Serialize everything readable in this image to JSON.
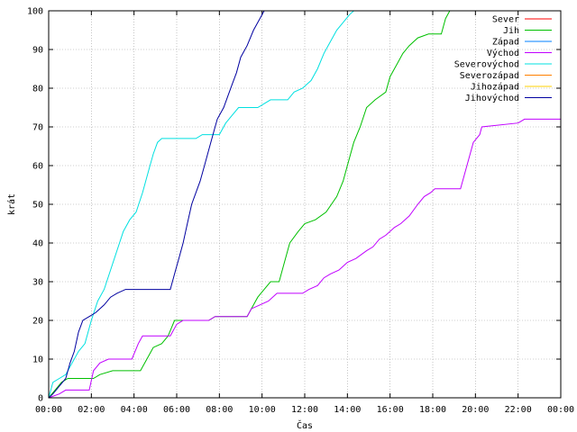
{
  "chart_data": {
    "type": "line",
    "xlabel": "Čas",
    "ylabel": "krát",
    "x_unit": "hours",
    "xlim": [
      0,
      24
    ],
    "ylim": [
      0,
      100
    ],
    "x_ticks": [
      0,
      2,
      4,
      6,
      8,
      10,
      12,
      14,
      16,
      18,
      20,
      22,
      24
    ],
    "x_tick_labels": [
      "00:00",
      "02:00",
      "04:00",
      "06:00",
      "08:00",
      "10:00",
      "12:00",
      "14:00",
      "16:00",
      "18:00",
      "20:00",
      "22:00",
      "00:00"
    ],
    "y_ticks": [
      0,
      10,
      20,
      30,
      40,
      50,
      60,
      70,
      80,
      90,
      100
    ],
    "y_tick_labels": [
      "0",
      "10",
      "20",
      "30",
      "40",
      "50",
      "60",
      "70",
      "80",
      "90",
      "100"
    ],
    "legend_position": "top-right",
    "series": [
      {
        "name": "Sever",
        "color": "#ff0000",
        "points": []
      },
      {
        "name": "Jih",
        "color": "#00c000",
        "points": [
          [
            0,
            0
          ],
          [
            0.3,
            2
          ],
          [
            0.6,
            4
          ],
          [
            0.9,
            5
          ],
          [
            2.1,
            5
          ],
          [
            2.4,
            6
          ],
          [
            3.0,
            7
          ],
          [
            4.3,
            7
          ],
          [
            4.6,
            10
          ],
          [
            4.9,
            13
          ],
          [
            5.3,
            14
          ],
          [
            5.6,
            16
          ],
          [
            5.9,
            20
          ],
          [
            7.5,
            20
          ],
          [
            7.8,
            21
          ],
          [
            9.3,
            21
          ],
          [
            9.5,
            23
          ],
          [
            9.8,
            26
          ],
          [
            10.1,
            28
          ],
          [
            10.4,
            30
          ],
          [
            10.8,
            30
          ],
          [
            11.0,
            34
          ],
          [
            11.3,
            40
          ],
          [
            11.7,
            43
          ],
          [
            12.0,
            45
          ],
          [
            12.5,
            46
          ],
          [
            13.0,
            48
          ],
          [
            13.5,
            52
          ],
          [
            13.8,
            56
          ],
          [
            14.0,
            60
          ],
          [
            14.3,
            66
          ],
          [
            14.6,
            70
          ],
          [
            14.9,
            75
          ],
          [
            15.3,
            77
          ],
          [
            15.8,
            79
          ],
          [
            16.0,
            83
          ],
          [
            16.3,
            86
          ],
          [
            16.6,
            89
          ],
          [
            16.9,
            91
          ],
          [
            17.3,
            93
          ],
          [
            17.8,
            94
          ],
          [
            18.4,
            94
          ],
          [
            18.6,
            98
          ],
          [
            18.8,
            100
          ]
        ]
      },
      {
        "name": "Západ",
        "color": "#0080ff",
        "points": []
      },
      {
        "name": "Východ",
        "color": "#c000ff",
        "points": [
          [
            0,
            0
          ],
          [
            0.5,
            1
          ],
          [
            0.8,
            2
          ],
          [
            1.9,
            2
          ],
          [
            2.1,
            7
          ],
          [
            2.4,
            9
          ],
          [
            2.8,
            10
          ],
          [
            3.9,
            10
          ],
          [
            4.2,
            14
          ],
          [
            4.4,
            16
          ],
          [
            5.7,
            16
          ],
          [
            6.0,
            19
          ],
          [
            6.3,
            20
          ],
          [
            7.5,
            20
          ],
          [
            7.8,
            21
          ],
          [
            9.3,
            21
          ],
          [
            9.5,
            23
          ],
          [
            9.9,
            24
          ],
          [
            10.3,
            25
          ],
          [
            10.7,
            27
          ],
          [
            11.9,
            27
          ],
          [
            12.2,
            28
          ],
          [
            12.6,
            29
          ],
          [
            12.9,
            31
          ],
          [
            13.2,
            32
          ],
          [
            13.6,
            33
          ],
          [
            14.0,
            35
          ],
          [
            14.4,
            36
          ],
          [
            14.9,
            38
          ],
          [
            15.2,
            39
          ],
          [
            15.5,
            41
          ],
          [
            15.8,
            42
          ],
          [
            16.2,
            44
          ],
          [
            16.5,
            45
          ],
          [
            16.9,
            47
          ],
          [
            17.3,
            50
          ],
          [
            17.6,
            52
          ],
          [
            17.9,
            53
          ],
          [
            18.1,
            54
          ],
          [
            19.3,
            54
          ],
          [
            19.6,
            60
          ],
          [
            19.9,
            66
          ],
          [
            20.2,
            68
          ],
          [
            20.3,
            70
          ],
          [
            22.0,
            71
          ],
          [
            22.3,
            72
          ],
          [
            24.0,
            72
          ]
        ]
      },
      {
        "name": "Severovýchod",
        "color": "#00e0e0",
        "points": [
          [
            0,
            0
          ],
          [
            0.2,
            4
          ],
          [
            0.5,
            5
          ],
          [
            0.8,
            6
          ],
          [
            1.1,
            9
          ],
          [
            1.4,
            12
          ],
          [
            1.7,
            14
          ],
          [
            2.0,
            20
          ],
          [
            2.3,
            25
          ],
          [
            2.6,
            28
          ],
          [
            2.9,
            33
          ],
          [
            3.2,
            38
          ],
          [
            3.5,
            43
          ],
          [
            3.8,
            46
          ],
          [
            4.1,
            48
          ],
          [
            4.4,
            53
          ],
          [
            4.7,
            59
          ],
          [
            4.9,
            63
          ],
          [
            5.1,
            66
          ],
          [
            5.3,
            67
          ],
          [
            6.9,
            67
          ],
          [
            7.2,
            68
          ],
          [
            8.0,
            68
          ],
          [
            8.3,
            71
          ],
          [
            8.6,
            73
          ],
          [
            8.9,
            75
          ],
          [
            9.8,
            75
          ],
          [
            10.1,
            76
          ],
          [
            10.4,
            77
          ],
          [
            11.2,
            77
          ],
          [
            11.5,
            79
          ],
          [
            11.9,
            80
          ],
          [
            12.3,
            82
          ],
          [
            12.6,
            85
          ],
          [
            12.9,
            89
          ],
          [
            13.2,
            92
          ],
          [
            13.5,
            95
          ],
          [
            13.8,
            97
          ],
          [
            14.1,
            99
          ],
          [
            14.3,
            100
          ]
        ]
      },
      {
        "name": "Severozápad",
        "color": "#ff8000",
        "points": []
      },
      {
        "name": "Jihozápad",
        "color": "#ffd000",
        "points": []
      },
      {
        "name": "Jihovýchod",
        "color": "#0000a0",
        "points": [
          [
            0,
            0
          ],
          [
            0.2,
            1
          ],
          [
            0.5,
            3
          ],
          [
            0.8,
            5
          ],
          [
            1.0,
            9
          ],
          [
            1.2,
            12
          ],
          [
            1.4,
            17
          ],
          [
            1.6,
            20
          ],
          [
            1.9,
            21
          ],
          [
            2.2,
            22
          ],
          [
            2.6,
            24
          ],
          [
            2.9,
            26
          ],
          [
            3.2,
            27
          ],
          [
            3.6,
            28
          ],
          [
            5.7,
            28
          ],
          [
            5.9,
            32
          ],
          [
            6.1,
            36
          ],
          [
            6.3,
            40
          ],
          [
            6.5,
            45
          ],
          [
            6.7,
            50
          ],
          [
            6.9,
            53
          ],
          [
            7.1,
            56
          ],
          [
            7.3,
            60
          ],
          [
            7.5,
            64
          ],
          [
            7.7,
            68
          ],
          [
            7.9,
            72
          ],
          [
            8.2,
            75
          ],
          [
            8.4,
            78
          ],
          [
            8.6,
            81
          ],
          [
            8.8,
            84
          ],
          [
            9.0,
            88
          ],
          [
            9.3,
            91
          ],
          [
            9.6,
            95
          ],
          [
            9.9,
            98
          ],
          [
            10.1,
            100
          ]
        ]
      }
    ]
  }
}
